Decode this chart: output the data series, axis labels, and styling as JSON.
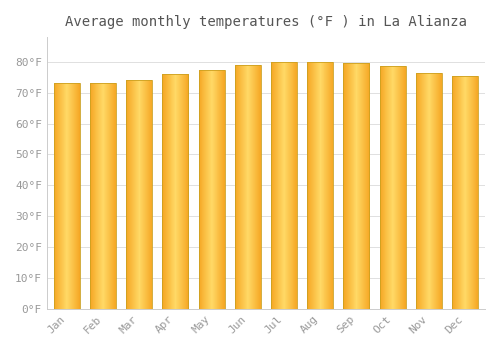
{
  "months": [
    "Jan",
    "Feb",
    "Mar",
    "Apr",
    "May",
    "Jun",
    "Jul",
    "Aug",
    "Sep",
    "Oct",
    "Nov",
    "Dec"
  ],
  "values": [
    73.0,
    73.0,
    74.1,
    75.9,
    77.5,
    79.0,
    79.9,
    79.9,
    79.5,
    78.8,
    76.5,
    75.5
  ],
  "title": "Average monthly temperatures (°F ) in La Alianza",
  "ylim": [
    0,
    88
  ],
  "yticks": [
    0,
    10,
    20,
    30,
    40,
    50,
    60,
    70,
    80
  ],
  "ytick_labels": [
    "0°F",
    "10°F",
    "20°F",
    "30°F",
    "40°F",
    "50°F",
    "60°F",
    "70°F",
    "80°F"
  ],
  "background_color": "#FFFFFF",
  "grid_color": "#E0E0E0",
  "title_fontsize": 10,
  "tick_fontsize": 8,
  "bar_width": 0.72,
  "bar_color_center": "#FFD966",
  "bar_color_edge": "#F5A623",
  "bar_edge_color": "#CCA020"
}
